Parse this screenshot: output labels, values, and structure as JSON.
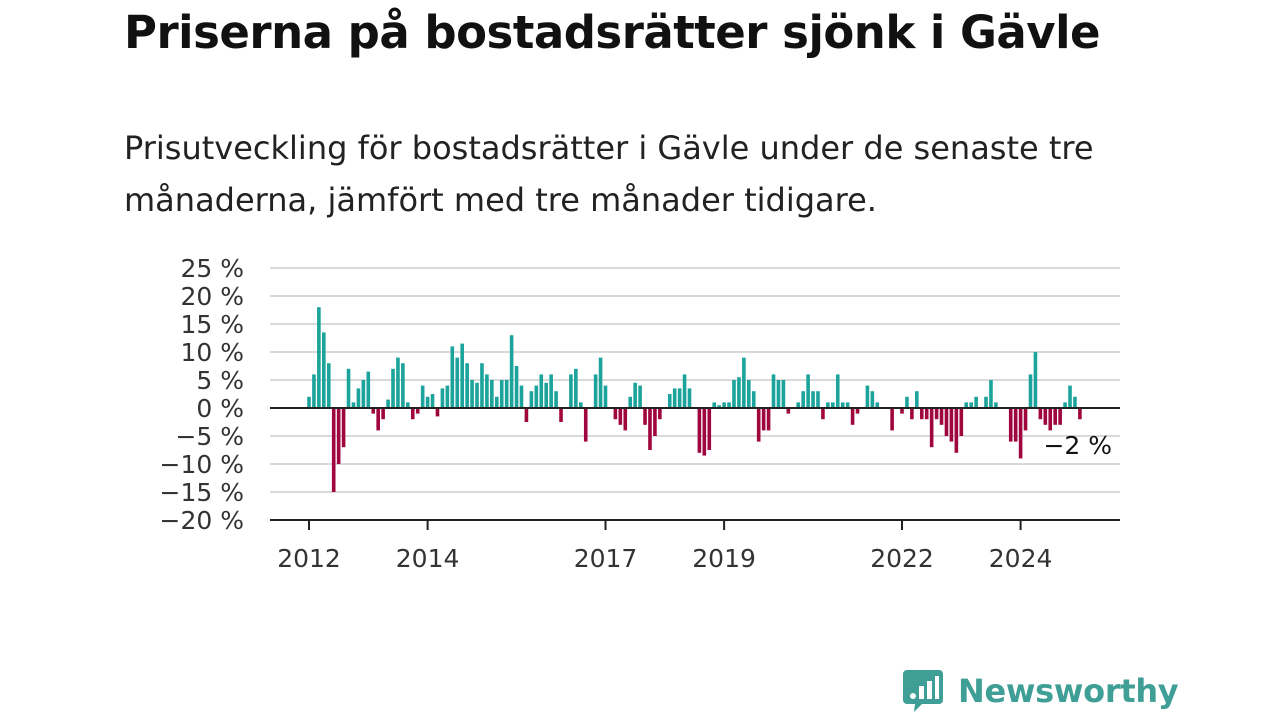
{
  "title": "Priserna på bostadsrätter sjönk i Gävle",
  "subtitle": "Prisutveckling för bostadsrätter i Gävle under de senaste tre månaderna, jämfört med tre månader tidigare.",
  "brand": {
    "name": "Newsworthy",
    "color": "#3f9f96"
  },
  "colors": {
    "positive": "#1ba39c",
    "negative": "#a0063e",
    "grid": "#d9d9d9",
    "axis": "#222222"
  },
  "chart_data": {
    "type": "bar",
    "x_start": "2012-01",
    "ylim": [
      -20,
      25
    ],
    "y_ticks": [
      25,
      20,
      15,
      10,
      5,
      0,
      -5,
      -10,
      -15,
      -20
    ],
    "y_tick_labels": [
      "25 %",
      "20 %",
      "15 %",
      "10 %",
      "5 %",
      "0 %",
      "−5 %",
      "−10 %",
      "−15 %",
      "−20 %"
    ],
    "x_tick_labels": [
      "2012",
      "2014",
      "2017",
      "2019",
      "2022",
      "2024"
    ],
    "grid": true,
    "last_value_label": "−2 %",
    "values": [
      2,
      6,
      18,
      13.5,
      8,
      -15,
      -10,
      -7,
      7,
      1,
      3.5,
      5,
      6.5,
      -1,
      -4,
      -2,
      1.5,
      7,
      9,
      8,
      1,
      -2,
      -1,
      4,
      2,
      2.5,
      -1.5,
      3.5,
      4,
      11,
      9,
      11.5,
      8,
      5,
      4.5,
      8,
      6,
      5,
      2,
      5,
      5,
      13,
      7.5,
      4,
      -2.5,
      3,
      4,
      6,
      4.5,
      6,
      3,
      -2.5,
      0,
      6,
      7,
      1,
      -6,
      0,
      6,
      9,
      4,
      0,
      -2,
      -3,
      -4,
      2,
      4.5,
      4,
      -3,
      -7.5,
      -5,
      -2,
      0,
      2.5,
      3.5,
      3.5,
      6,
      3.5,
      0,
      -8,
      -8.5,
      -7.5,
      1,
      0.5,
      1,
      1,
      5,
      5.5,
      9,
      5,
      3,
      -6,
      -4,
      -4,
      6,
      5,
      5,
      -1,
      0,
      1,
      3,
      6,
      3,
      3,
      -2,
      1,
      1,
      6,
      1,
      1,
      -3,
      -1,
      0,
      4,
      3,
      1,
      0,
      0,
      -4,
      0,
      -1,
      2,
      -2,
      3,
      -2,
      -2,
      -7,
      -2,
      -3,
      -5,
      -6,
      -8,
      -5,
      1,
      1,
      2,
      0,
      2,
      5,
      1,
      0,
      0,
      -6,
      -6,
      -9,
      -4,
      6,
      10,
      -2,
      -3,
      -4,
      -3,
      -3,
      1,
      4,
      2,
      -2
    ]
  }
}
